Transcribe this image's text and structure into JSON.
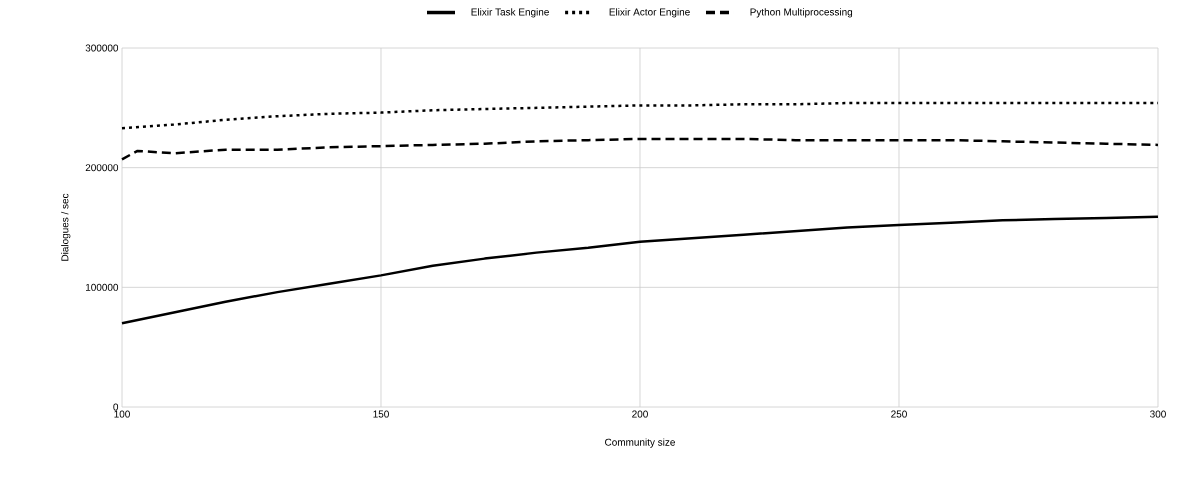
{
  "chart_data": {
    "type": "line",
    "xlabel": "Community size",
    "ylabel": "Dialogues / sec",
    "xlim": [
      100,
      300
    ],
    "ylim": [
      0,
      300000
    ],
    "xticks": [
      100,
      150,
      200,
      250,
      300
    ],
    "yticks": [
      0,
      100000,
      200000,
      300000
    ],
    "grid": true,
    "legend": "top",
    "marker": "none",
    "series": [
      {
        "name": "Elixir Task Engine",
        "color": "#000000",
        "line_style": "solid",
        "x": [
          100,
          110,
          120,
          130,
          140,
          150,
          160,
          170,
          180,
          190,
          200,
          210,
          220,
          230,
          240,
          250,
          260,
          270,
          280,
          290,
          300
        ],
        "values": [
          70000,
          79000,
          88000,
          96000,
          103000,
          110000,
          118000,
          124000,
          129000,
          133000,
          138000,
          141000,
          144000,
          147000,
          150000,
          152000,
          154000,
          156000,
          157000,
          158000,
          159000
        ]
      },
      {
        "name": "Elixir Actor Engine",
        "color": "#000000",
        "line_style": "dotted",
        "x": [
          100,
          110,
          120,
          130,
          140,
          150,
          160,
          170,
          180,
          190,
          200,
          210,
          220,
          230,
          240,
          250,
          260,
          270,
          280,
          290,
          300
        ],
        "values": [
          233000,
          236000,
          240000,
          243000,
          245000,
          246000,
          248000,
          249000,
          250000,
          251000,
          252000,
          252000,
          253000,
          253000,
          254000,
          254000,
          254000,
          254000,
          254000,
          254000,
          254000
        ]
      },
      {
        "name": "Python Multiprocessing",
        "color": "#000000",
        "line_style": "dashed",
        "x": [
          100,
          103,
          110,
          120,
          130,
          140,
          150,
          160,
          170,
          180,
          190,
          200,
          210,
          220,
          230,
          240,
          250,
          260,
          270,
          280,
          290,
          300
        ],
        "values": [
          207000,
          214000,
          212000,
          215000,
          215000,
          217000,
          218000,
          219000,
          220000,
          222000,
          223000,
          224000,
          224000,
          224000,
          223000,
          223000,
          223000,
          223000,
          222000,
          221000,
          220000,
          219000
        ]
      }
    ]
  }
}
